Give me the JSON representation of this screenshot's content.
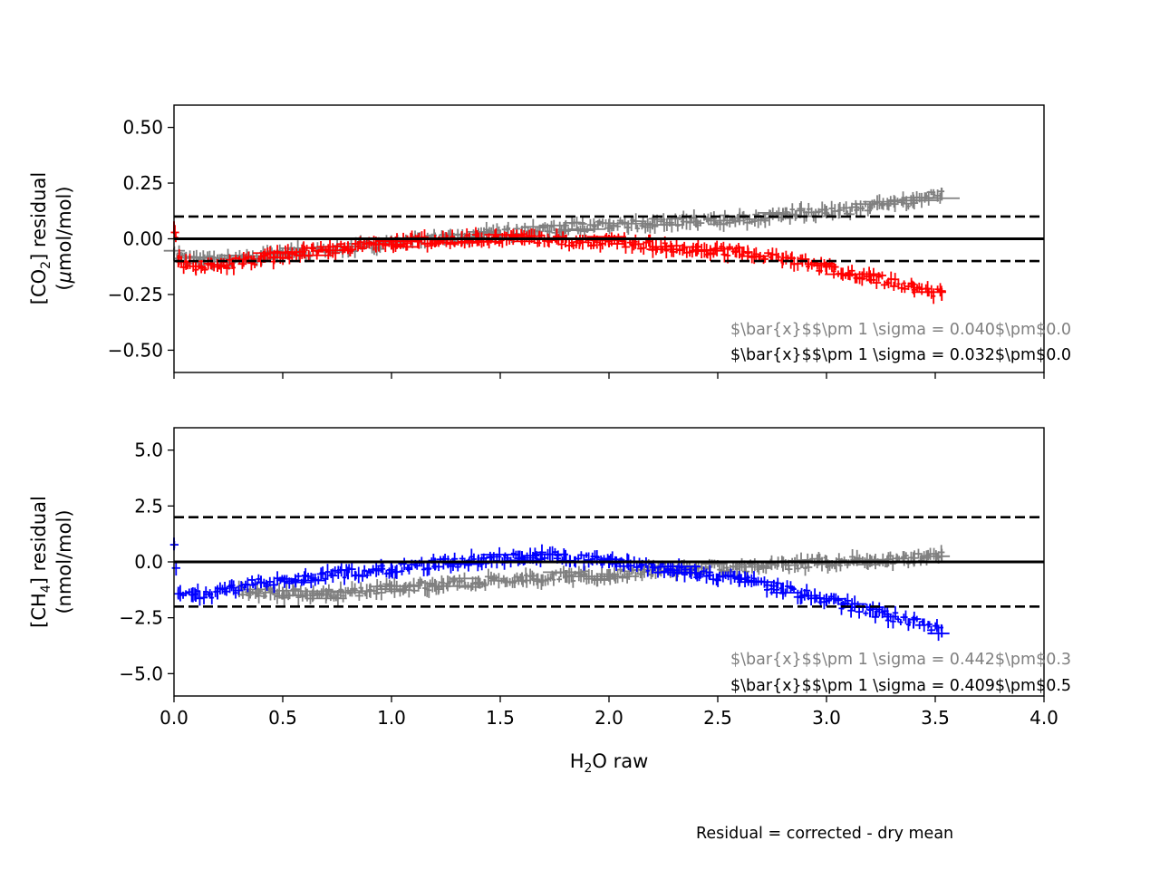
{
  "footnote": "Residual = corrected - dry mean",
  "xlabel_base": "H",
  "xlabel_sub": "2",
  "xlabel_rest": "O raw",
  "colors": {
    "gray": "#808080",
    "red": "#ff0000",
    "blue": "#0000ff",
    "black": "#000000"
  },
  "chart_data": [
    {
      "type": "scatter",
      "panel": "top",
      "ylabel_line1_a": "[CO",
      "ylabel_line1_sub": "2",
      "ylabel_line1_b": "] residual",
      "ylabel_line2_a": "(",
      "ylabel_line2_mu": "μ",
      "ylabel_line2_b": "mol/mol)",
      "xlim": [
        0.0,
        4.0
      ],
      "ylim": [
        -0.6,
        0.6
      ],
      "xticks": [
        0.0,
        0.5,
        1.0,
        1.5,
        2.0,
        2.5,
        3.0,
        3.5,
        4.0
      ],
      "xtick_labels": [],
      "yticks": [
        0.5,
        0.25,
        0.0,
        -0.25,
        -0.5
      ],
      "ytick_labels": [
        "0.50",
        "0.25",
        "0.00",
        "−0.25",
        "−0.50"
      ],
      "hlines": [
        {
          "y": 0.1,
          "style": "dashed"
        },
        {
          "y": 0.0,
          "style": "solid"
        },
        {
          "y": -0.1,
          "style": "dashed"
        }
      ],
      "series": [
        {
          "color": "gray",
          "points": [
            [
              0.0,
              -0.07
            ],
            [
              0.05,
              -0.09
            ],
            [
              0.2,
              -0.1
            ],
            [
              0.4,
              -0.08
            ],
            [
              0.6,
              -0.06
            ],
            [
              0.8,
              -0.04
            ],
            [
              1.0,
              -0.02
            ],
            [
              1.2,
              0.0
            ],
            [
              1.4,
              0.02
            ],
            [
              1.6,
              0.03
            ],
            [
              1.8,
              0.05
            ],
            [
              2.0,
              0.06
            ],
            [
              2.2,
              0.07
            ],
            [
              2.4,
              0.08
            ],
            [
              2.6,
              0.09
            ],
            [
              2.8,
              0.11
            ],
            [
              3.0,
              0.12
            ],
            [
              3.2,
              0.14
            ],
            [
              3.4,
              0.17
            ],
            [
              3.53,
              0.2
            ]
          ]
        },
        {
          "color": "red",
          "points": [
            [
              0.0,
              0.05
            ],
            [
              0.02,
              -0.1
            ],
            [
              0.1,
              -0.13
            ],
            [
              0.2,
              -0.12
            ],
            [
              0.4,
              -0.09
            ],
            [
              0.6,
              -0.06
            ],
            [
              0.8,
              -0.04
            ],
            [
              1.0,
              -0.02
            ],
            [
              1.2,
              -0.01
            ],
            [
              1.4,
              0.0
            ],
            [
              1.6,
              0.0
            ],
            [
              1.8,
              -0.01
            ],
            [
              2.0,
              -0.01
            ],
            [
              2.2,
              -0.03
            ],
            [
              2.4,
              -0.05
            ],
            [
              2.6,
              -0.06
            ],
            [
              2.8,
              -0.09
            ],
            [
              3.0,
              -0.13
            ],
            [
              3.2,
              -0.17
            ],
            [
              3.4,
              -0.22
            ],
            [
              3.53,
              -0.25
            ]
          ]
        }
      ],
      "stats": [
        {
          "text": "$\\bar{x}$$\\pm 1 \\sigma = 0.040$\\pm$0.0",
          "color": "gray"
        },
        {
          "text": "$\\bar{x}$$\\pm 1 \\sigma = 0.032$\\pm$0.0",
          "color": "black"
        }
      ]
    },
    {
      "type": "scatter",
      "panel": "bottom",
      "ylabel_line1_a": "[CH",
      "ylabel_line1_sub": "4",
      "ylabel_line1_b": "] residual",
      "ylabel_line2": "(nmol/mol)",
      "xlim": [
        0.0,
        4.0
      ],
      "ylim": [
        -6.0,
        6.0
      ],
      "xticks": [
        0.0,
        0.5,
        1.0,
        1.5,
        2.0,
        2.5,
        3.0,
        3.5,
        4.0
      ],
      "xtick_labels": [
        "0.0",
        "0.5",
        "1.0",
        "1.5",
        "2.0",
        "2.5",
        "3.0",
        "3.5",
        "4.0"
      ],
      "yticks": [
        5.0,
        2.5,
        0.0,
        -2.5,
        -5.0
      ],
      "ytick_labels": [
        "5.0",
        "2.5",
        "0.0",
        "−2.5",
        "−5.0"
      ],
      "hlines": [
        {
          "y": 2.0,
          "style": "dashed"
        },
        {
          "y": 0.0,
          "style": "solid"
        },
        {
          "y": -2.0,
          "style": "dashed"
        }
      ],
      "series": [
        {
          "color": "gray",
          "points": [
            [
              0.3,
              -1.3
            ],
            [
              0.5,
              -1.4
            ],
            [
              0.7,
              -1.45
            ],
            [
              0.9,
              -1.3
            ],
            [
              1.0,
              -1.15
            ],
            [
              1.2,
              -1.05
            ],
            [
              1.4,
              -0.9
            ],
            [
              1.6,
              -0.75
            ],
            [
              1.8,
              -0.65
            ],
            [
              2.0,
              -0.6
            ],
            [
              2.2,
              -0.4
            ],
            [
              2.4,
              -0.3
            ],
            [
              2.6,
              -0.25
            ],
            [
              2.8,
              -0.15
            ],
            [
              3.0,
              0.0
            ],
            [
              3.2,
              0.05
            ],
            [
              3.4,
              0.15
            ],
            [
              3.53,
              0.3
            ]
          ]
        },
        {
          "color": "blue",
          "points": [
            [
              0.0,
              0.8
            ],
            [
              0.02,
              -1.4
            ],
            [
              0.1,
              -1.5
            ],
            [
              0.2,
              -1.4
            ],
            [
              0.4,
              -0.9
            ],
            [
              0.6,
              -0.7
            ],
            [
              0.8,
              -0.5
            ],
            [
              1.0,
              -0.3
            ],
            [
              1.2,
              -0.1
            ],
            [
              1.4,
              0.05
            ],
            [
              1.6,
              0.2
            ],
            [
              1.8,
              0.25
            ],
            [
              2.0,
              0.0
            ],
            [
              2.2,
              -0.25
            ],
            [
              2.4,
              -0.5
            ],
            [
              2.6,
              -0.8
            ],
            [
              2.8,
              -1.2
            ],
            [
              3.0,
              -1.7
            ],
            [
              3.2,
              -2.2
            ],
            [
              3.4,
              -2.7
            ],
            [
              3.53,
              -3.1
            ]
          ]
        }
      ],
      "stats": [
        {
          "text": "$\\bar{x}$$\\pm 1 \\sigma = 0.442$\\pm$0.3",
          "color": "gray"
        },
        {
          "text": "$\\bar{x}$$\\pm 1 \\sigma = 0.409$\\pm$0.5",
          "color": "black"
        }
      ]
    }
  ]
}
